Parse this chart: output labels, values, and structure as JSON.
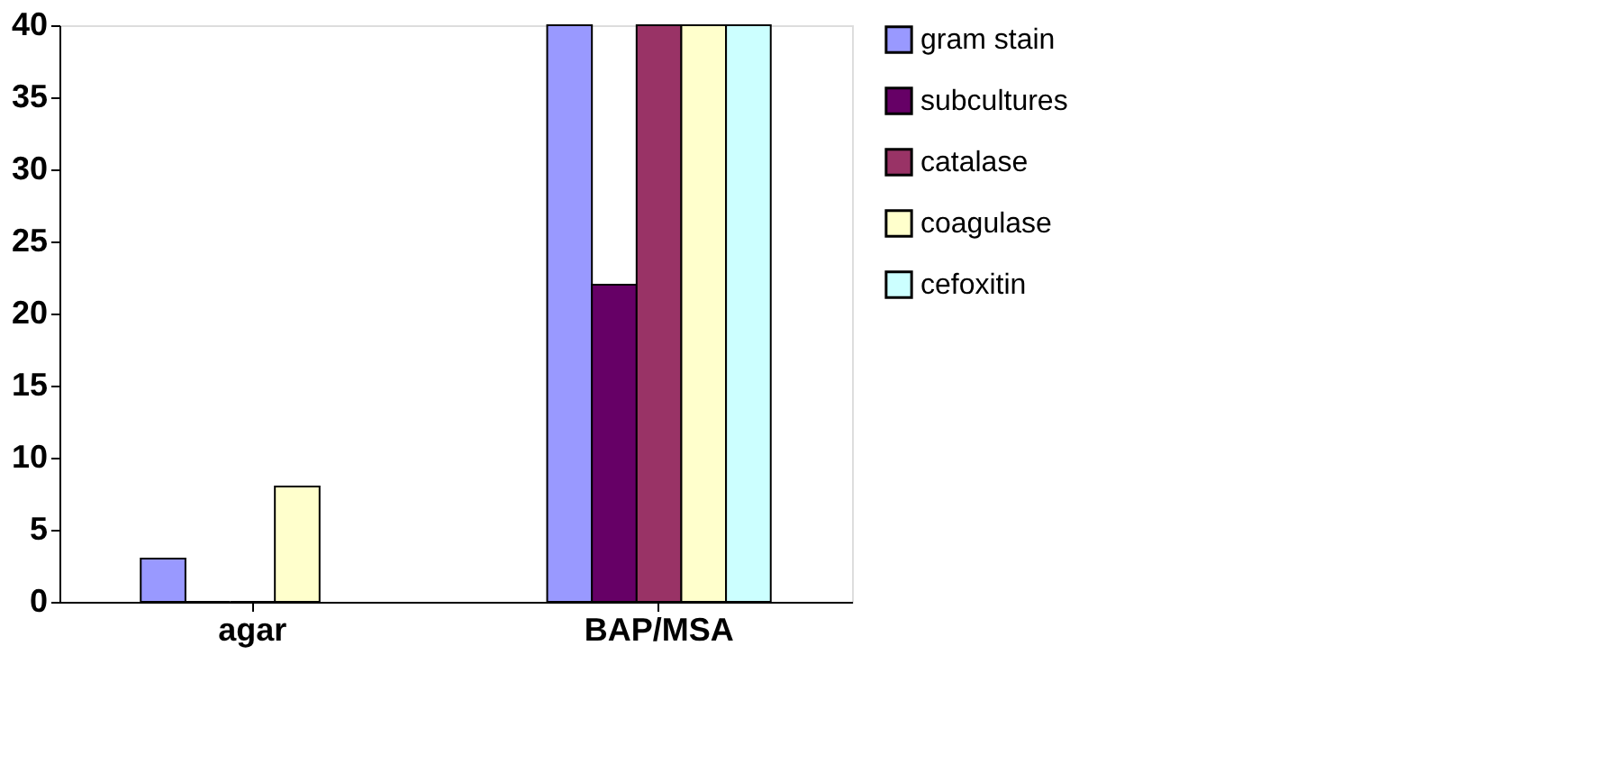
{
  "chart_data": {
    "type": "bar",
    "categories": [
      "agar",
      "BAP/MSA"
    ],
    "series": [
      {
        "name": "gram stain",
        "color": "#9999ff",
        "values": [
          3,
          40
        ]
      },
      {
        "name": "subcultures",
        "color": "#660066",
        "values": [
          0,
          22
        ]
      },
      {
        "name": "catalase",
        "color": "#993366",
        "values": [
          0,
          40
        ]
      },
      {
        "name": "coagulase",
        "color": "#ffffcc",
        "values": [
          8,
          40
        ]
      },
      {
        "name": "cefoxitin",
        "color": "#ccffff",
        "values": [
          null,
          40
        ]
      }
    ],
    "ylim": [
      0,
      40
    ],
    "yticks": [
      0,
      5,
      10,
      15,
      20,
      25,
      30,
      35,
      40
    ],
    "grid": false,
    "legend": "right"
  }
}
